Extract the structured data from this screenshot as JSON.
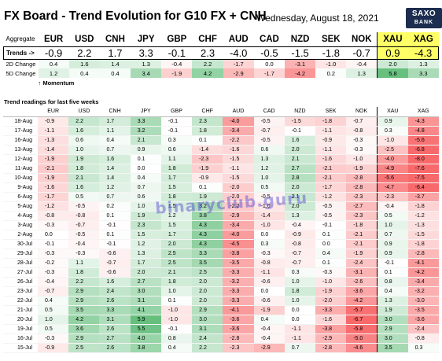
{
  "header": {
    "title": "FX Board - Trend Evolution for G10 FX + CNH",
    "date": "Wednesday, August 18, 2021",
    "logo_line1": "SAXO",
    "logo_line2": "BANK"
  },
  "summary": {
    "aggregate_label": "Aggregate",
    "currencies": [
      "EUR",
      "USD",
      "CNH",
      "JPY",
      "GBP",
      "CHF",
      "AUD",
      "CAD",
      "NZD",
      "SEK",
      "NOK",
      "XAU",
      "XAG"
    ],
    "trends_label": "Trends ->",
    "trends": [
      "-0.9",
      "2.2",
      "1.7",
      "3.3",
      "-0.1",
      "2.3",
      "-4.0",
      "-0.5",
      "-1.5",
      "-1.8",
      "-0.7",
      "0.9",
      "-4.3"
    ],
    "change_2d_label": "2D Change",
    "change_2d": [
      "0.4",
      "1.6",
      "1.4",
      "1.3",
      "-0.4",
      "2.2",
      "-1.7",
      "0.0",
      "-3.1",
      "-1.0",
      "-0.4",
      "2.0",
      "1.3"
    ],
    "change_5d_label": "5D Change",
    "change_5d": [
      "1.2",
      "0.4",
      "0.4",
      "3.4",
      "-1.9",
      "4.2",
      "-2.9",
      "-1.7",
      "-4.2",
      "0.2",
      "1.3",
      "5.8",
      "3.3"
    ],
    "momentum_label": "↑ Momentum"
  },
  "history": {
    "section_title": "Trend readings for last five weeks",
    "columns": [
      "EUR",
      "USD",
      "CNH",
      "JPY",
      "GBP",
      "CHF",
      "AUD",
      "CAD",
      "NZD",
      "SEK",
      "NOK",
      "XAU",
      "XAG"
    ],
    "rows": [
      {
        "date": "18-Aug",
        "values": [
          "-0.9",
          "2.2",
          "1.7",
          "3.3",
          "-0.1",
          "2.3",
          "-4.0",
          "-0.5",
          "-1.5",
          "-1.8",
          "-0.7",
          "0.9",
          "-4.3"
        ]
      },
      {
        "date": "17-Aug",
        "values": [
          "-1.1",
          "1.6",
          "1.1",
          "3.2",
          "-0.1",
          "1.8",
          "-3.4",
          "-0.7",
          "-0.1",
          "-1.1",
          "-0.8",
          "0.3",
          "-4.8"
        ]
      },
      {
        "date": "16-Aug",
        "values": [
          "-1.3",
          "0.6",
          "0.4",
          "2.1",
          "0.3",
          "0.1",
          "-2.2",
          "-0.5",
          "1.6",
          "-0.9",
          "-0.3",
          "-1.0",
          "-5.6"
        ]
      },
      {
        "date": "13-Aug",
        "values": [
          "-1.4",
          "1.0",
          "0.7",
          "0.9",
          "0.6",
          "-1.4",
          "-1.6",
          "0.6",
          "2.0",
          "-1.1",
          "-0.3",
          "-2.5",
          "-6.8"
        ]
      },
      {
        "date": "12-Aug",
        "values": [
          "-1.9",
          "1.9",
          "1.6",
          "0.1",
          "1.1",
          "-2.3",
          "-1.5",
          "1.3",
          "2.1",
          "-1.6",
          "-1.0",
          "-4.0",
          "-8.0"
        ]
      },
      {
        "date": "11-Aug",
        "values": [
          "-2.1",
          "1.8",
          "1.4",
          "0.0",
          "1.8",
          "-1.9",
          "-1.1",
          "1.2",
          "2.7",
          "-2.1",
          "-1.9",
          "-4.9",
          "-7.6"
        ]
      },
      {
        "date": "10-Aug",
        "values": [
          "-1.9",
          "2.1",
          "1.4",
          "0.4",
          "1.7",
          "-0.9",
          "-1.5",
          "1.0",
          "2.8",
          "-2.1",
          "-2.8",
          "-5.6",
          "-7.5"
        ]
      },
      {
        "date": "9-Aug",
        "values": [
          "-1.6",
          "1.6",
          "1.2",
          "0.7",
          "1.5",
          "0.1",
          "-2.0",
          "0.5",
          "2.0",
          "-1.7",
          "-2.8",
          "-4.7",
          "-6.4"
        ]
      },
      {
        "date": "6-Aug",
        "values": [
          "-1.7",
          "0.5",
          "0.7",
          "0.6",
          "1.8",
          "1.9",
          "-2.0",
          "-0.5",
          "2.1",
          "-1.2",
          "-2.3",
          "-2.3",
          "-3.7"
        ]
      },
      {
        "date": "5-Aug",
        "values": [
          "-1.2",
          "-0.5",
          "0.2",
          "1.0",
          "1.5",
          "3.2",
          "-2.2",
          "-1.0",
          "2.0",
          "-0.5",
          "-2.7",
          "-0.4",
          "-1.8"
        ]
      },
      {
        "date": "4-Aug",
        "values": [
          "-0.8",
          "-0.8",
          "0.1",
          "1.9",
          "1.2",
          "3.8",
          "-2.9",
          "-1.4",
          "1.3",
          "-0.5",
          "-2.3",
          "0.5",
          "-1.2"
        ]
      },
      {
        "date": "3-Aug",
        "values": [
          "-0.3",
          "-0.7",
          "-0.1",
          "2.3",
          "1.5",
          "4.3",
          "-3.4",
          "-1.0",
          "-0.4",
          "-0.1",
          "-1.8",
          "1.0",
          "-1.3"
        ]
      },
      {
        "date": "2-Aug",
        "values": [
          "0.0",
          "-0.5",
          "0.1",
          "1.5",
          "1.7",
          "4.3",
          "-4.0",
          "0.0",
          "-0.9",
          "0.1",
          "-2.1",
          "0.7",
          "-1.5"
        ]
      },
      {
        "date": "30-Jul",
        "values": [
          "-0.1",
          "-0.4",
          "-0.1",
          "1.2",
          "2.0",
          "4.3",
          "-4.5",
          "0.3",
          "-0.8",
          "0.0",
          "-2.1",
          "0.9",
          "-1.8"
        ]
      },
      {
        "date": "29-Jul",
        "values": [
          "-0.3",
          "-0.3",
          "-0.6",
          "1.3",
          "2.5",
          "3.3",
          "-3.8",
          "-0.3",
          "-0.7",
          "0.4",
          "-1.9",
          "0.9",
          "-2.8"
        ]
      },
      {
        "date": "28-Jul",
        "values": [
          "-0.2",
          "1.1",
          "-0.7",
          "1.7",
          "2.5",
          "3.5",
          "-3.5",
          "-0.8",
          "-0.7",
          "0.1",
          "-2.4",
          "-0.1",
          "-4.1"
        ]
      },
      {
        "date": "27-Jul",
        "values": [
          "-0.3",
          "1.8",
          "-0.6",
          "2.0",
          "2.1",
          "2.5",
          "-3.3",
          "-1.1",
          "0.3",
          "-0.3",
          "-3.1",
          "0.1",
          "-4.2"
        ]
      },
      {
        "date": "26-Jul",
        "values": [
          "-0.4",
          "2.2",
          "1.6",
          "2.7",
          "1.8",
          "2.0",
          "-3.2",
          "-0.6",
          "1.0",
          "-1.0",
          "-2.6",
          "0.8",
          "-3.4"
        ]
      },
      {
        "date": "23-Jul",
        "values": [
          "-0.7",
          "2.9",
          "2.4",
          "3.0",
          "1.0",
          "2.0",
          "-3.3",
          "0.0",
          "1.8",
          "-1.9",
          "-3.6",
          "0.4",
          "-3.2"
        ]
      },
      {
        "date": "22-Jul",
        "values": [
          "0.4",
          "2.9",
          "2.6",
          "3.1",
          "0.1",
          "2.0",
          "-3.3",
          "-0.6",
          "1.0",
          "-2.0",
          "-4.2",
          "1.3",
          "-3.0"
        ]
      },
      {
        "date": "21-Jul",
        "values": [
          "0.5",
          "3.5",
          "3.3",
          "4.1",
          "-1.0",
          "2.9",
          "-4.1",
          "-1.9",
          "0.0",
          "-3.3",
          "-5.7",
          "1.9",
          "-3.5"
        ]
      },
      {
        "date": "20-Jul",
        "values": [
          "1.0",
          "4.2",
          "3.1",
          "5.9",
          "-1.0",
          "3.0",
          "-3.6",
          "0.4",
          "0.0",
          "-1.6",
          "-6.7",
          "3.0",
          "-3.6"
        ]
      },
      {
        "date": "19-Jul",
        "values": [
          "0.5",
          "3.6",
          "2.6",
          "5.5",
          "-0.1",
          "3.1",
          "-3.6",
          "-0.4",
          "-1.1",
          "-3.8",
          "-5.8",
          "2.9",
          "-2.4"
        ]
      },
      {
        "date": "16-Jul",
        "values": [
          "-0.3",
          "2.9",
          "2.7",
          "4.0",
          "0.8",
          "2.4",
          "-2.8",
          "-0.4",
          "-1.1",
          "-2.9",
          "-5.0",
          "3.0",
          "-0.8"
        ]
      },
      {
        "date": "15-Jul",
        "values": [
          "-0.9",
          "2.5",
          "2.6",
          "3.8",
          "0.4",
          "2.2",
          "-2.3",
          "-2.9",
          "0.7",
          "-2.8",
          "-4.6",
          "3.5",
          "0.3"
        ]
      }
    ]
  },
  "watermark": "binaryclub.guru",
  "colors": {
    "positive": "#63be7b",
    "negative": "#f8696b",
    "highlight": "#ffff66"
  }
}
